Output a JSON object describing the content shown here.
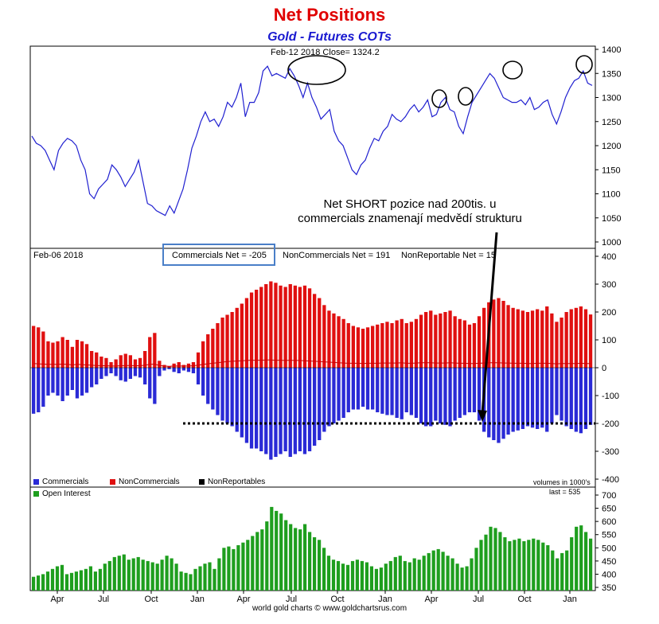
{
  "header": {
    "title": "Net Positions",
    "subtitle": "Gold - Futures COTs"
  },
  "price_panel": {
    "info": "Feb-12  2018   Close= 1324.2",
    "yticks": [
      "1400",
      "1350",
      "1300",
      "1250",
      "1200",
      "1150",
      "1100",
      "1050",
      "1000"
    ]
  },
  "positions_panel": {
    "date": "Feb-06  2018",
    "commercials_net": "Commercials Net = -205",
    "noncommercials_net": "NonCommercials Net = 191",
    "nonreportable_net": "NonReportable Net = 15",
    "yticks": [
      "400",
      "300",
      "200",
      "100",
      "0",
      "-100",
      "-200",
      "-300",
      "-400"
    ],
    "legend": [
      "Commercials",
      "NonCommercials",
      "NonReportables"
    ],
    "units": "volumes in 1000's"
  },
  "annotation": {
    "line1": "Net SHORT pozice nad 200tis. u",
    "line2": "commercials znamenají medvědí strukturu"
  },
  "oi_panel": {
    "legend": "Open Interest",
    "last": "last = 535",
    "yticks": [
      "700",
      "650",
      "600",
      "550",
      "500",
      "450",
      "400",
      "350"
    ]
  },
  "xaxis": {
    "labels": [
      "Apr",
      "Jul",
      "Oct",
      "Jan",
      "Apr",
      "Jul",
      "Oct",
      "Jan",
      "Apr",
      "Jul",
      "Oct",
      "Jan"
    ]
  },
  "footer": {
    "credit": "world gold charts © www.goldchartsrus.com"
  },
  "colors": {
    "price_line": "#2020d0",
    "commercials": "#2a2ad6",
    "noncommercials": "#e01010",
    "nonreportables": "#000000",
    "open_interest": "#1e9e1e"
  },
  "chart_data": [
    {
      "type": "line",
      "title": "Gold - Futures COTs",
      "series": [
        {
          "name": "Gold price",
          "values": [
            1220,
            1205,
            1200,
            1190,
            1170,
            1150,
            1190,
            1205,
            1215,
            1210,
            1200,
            1170,
            1150,
            1100,
            1090,
            1110,
            1120,
            1130,
            1160,
            1150,
            1135,
            1115,
            1130,
            1145,
            1170,
            1125,
            1080,
            1075,
            1065,
            1060,
            1055,
            1075,
            1060,
            1085,
            1110,
            1150,
            1195,
            1220,
            1250,
            1270,
            1250,
            1255,
            1240,
            1260,
            1290,
            1280,
            1300,
            1330,
            1260,
            1290,
            1290,
            1310,
            1355,
            1365,
            1345,
            1350,
            1345,
            1340,
            1360,
            1345,
            1325,
            1300,
            1330,
            1300,
            1280,
            1255,
            1265,
            1275,
            1230,
            1210,
            1200,
            1175,
            1150,
            1140,
            1160,
            1170,
            1195,
            1215,
            1210,
            1230,
            1240,
            1265,
            1255,
            1250,
            1260,
            1275,
            1285,
            1270,
            1280,
            1295,
            1260,
            1265,
            1290,
            1300,
            1275,
            1270,
            1240,
            1225,
            1260,
            1290,
            1305,
            1320,
            1335,
            1350,
            1340,
            1320,
            1300,
            1295,
            1290,
            1290,
            1295,
            1285,
            1300,
            1275,
            1280,
            1290,
            1295,
            1265,
            1245,
            1270,
            1300,
            1320,
            1335,
            1340,
            1355,
            1330,
            1325
          ]
        }
      ],
      "xlabel": "",
      "ylabel": "",
      "ylim": [
        1000,
        1400
      ],
      "annotations": [
        "Feb-12  2018   Close= 1324.2"
      ]
    },
    {
      "type": "bar",
      "title": "Net Positions",
      "series": [
        {
          "name": "Commercials",
          "values": [
            -165,
            -160,
            -140,
            -100,
            -90,
            -100,
            -120,
            -100,
            -80,
            -110,
            -100,
            -90,
            -70,
            -60,
            -40,
            -30,
            -20,
            -30,
            -45,
            -50,
            -40,
            -30,
            -35,
            -60,
            -110,
            -130,
            -30,
            -10,
            -5,
            -15,
            -20,
            -10,
            -15,
            -20,
            -60,
            -100,
            -130,
            -150,
            -170,
            -190,
            -200,
            -210,
            -230,
            -250,
            -270,
            -290,
            -290,
            -300,
            -310,
            -330,
            -320,
            -310,
            -300,
            -320,
            -310,
            -300,
            -310,
            -300,
            -280,
            -260,
            -230,
            -210,
            -200,
            -190,
            -180,
            -160,
            -150,
            -150,
            -140,
            -150,
            -150,
            -160,
            -165,
            -170,
            -170,
            -180,
            -185,
            -160,
            -170,
            -180,
            -200,
            -210,
            -210,
            -190,
            -200,
            -205,
            -210,
            -190,
            -180,
            -170,
            -160,
            -160,
            -190,
            -230,
            -250,
            -260,
            -270,
            -255,
            -240,
            -230,
            -225,
            -220,
            -210,
            -215,
            -220,
            -215,
            -230,
            -200,
            -170,
            -190,
            -210,
            -220,
            -230,
            -235,
            -220,
            -205
          ]
        },
        {
          "name": "NonCommercials",
          "values": [
            150,
            145,
            130,
            95,
            90,
            95,
            110,
            100,
            75,
            100,
            95,
            85,
            60,
            55,
            40,
            35,
            20,
            30,
            45,
            50,
            45,
            30,
            35,
            60,
            110,
            125,
            25,
            10,
            5,
            15,
            20,
            10,
            15,
            20,
            55,
            95,
            120,
            140,
            160,
            180,
            190,
            200,
            215,
            230,
            250,
            270,
            280,
            290,
            300,
            310,
            305,
            295,
            290,
            300,
            295,
            290,
            295,
            285,
            265,
            250,
            225,
            205,
            195,
            185,
            175,
            160,
            150,
            145,
            140,
            145,
            150,
            155,
            160,
            165,
            160,
            170,
            175,
            160,
            165,
            175,
            190,
            200,
            205,
            190,
            195,
            200,
            205,
            185,
            175,
            170,
            155,
            160,
            185,
            215,
            235,
            245,
            250,
            240,
            225,
            215,
            210,
            205,
            200,
            205,
            210,
            205,
            220,
            195,
            165,
            180,
            200,
            210,
            215,
            220,
            210,
            191
          ]
        },
        {
          "name": "NonReportables",
          "values": [
            15,
            14,
            13,
            12,
            12,
            12,
            13,
            12,
            10,
            12,
            11,
            10,
            9,
            8,
            7,
            7,
            6,
            6,
            7,
            8,
            8,
            7,
            7,
            9,
            12,
            13,
            8,
            6,
            5,
            6,
            6,
            6,
            6,
            7,
            9,
            12,
            14,
            16,
            18,
            20,
            22,
            23,
            24,
            25,
            26,
            27,
            27,
            27,
            28,
            28,
            27,
            27,
            26,
            27,
            26,
            26,
            25,
            24,
            23,
            22,
            21,
            20,
            19,
            18,
            17,
            16,
            16,
            16,
            15,
            16,
            16,
            16,
            17,
            17,
            17,
            17,
            18,
            16,
            16,
            17,
            18,
            18,
            18,
            17,
            17,
            17,
            18,
            17,
            16,
            16,
            15,
            15,
            16,
            17,
            18,
            18,
            18,
            17,
            17,
            16,
            16,
            16,
            15,
            15,
            16,
            16,
            16,
            15,
            14,
            15,
            15,
            15,
            15,
            16,
            15,
            15
          ]
        }
      ],
      "xlabel": "",
      "ylabel": "",
      "ylim": [
        -400,
        400
      ],
      "annotations": [
        "Commercials Net = -205",
        "NonCommercials Net = 191",
        "NonReportable Net = 15"
      ]
    },
    {
      "type": "bar",
      "series": [
        {
          "name": "Open Interest",
          "values": [
            390,
            395,
            400,
            410,
            420,
            430,
            435,
            400,
            405,
            410,
            415,
            420,
            430,
            410,
            420,
            440,
            450,
            465,
            470,
            475,
            455,
            460,
            465,
            455,
            450,
            445,
            440,
            455,
            470,
            460,
            440,
            410,
            405,
            400,
            420,
            430,
            440,
            445,
            420,
            460,
            500,
            505,
            495,
            510,
            520,
            530,
            545,
            560,
            570,
            600,
            655,
            640,
            630,
            605,
            590,
            575,
            570,
            590,
            560,
            540,
            530,
            500,
            470,
            455,
            450,
            440,
            435,
            450,
            455,
            450,
            445,
            430,
            420,
            425,
            440,
            450,
            465,
            470,
            450,
            445,
            460,
            455,
            470,
            480,
            490,
            495,
            485,
            470,
            460,
            440,
            425,
            430,
            460,
            500,
            530,
            550,
            580,
            575,
            560,
            540,
            525,
            530,
            535,
            525,
            530,
            535,
            530,
            520,
            510,
            490,
            460,
            480,
            490,
            540,
            580,
            585,
            560,
            535
          ]
        }
      ],
      "xlabel": "",
      "ylabel": "",
      "ylim": [
        350,
        700
      ],
      "annotations": [
        "last = 535"
      ]
    }
  ]
}
